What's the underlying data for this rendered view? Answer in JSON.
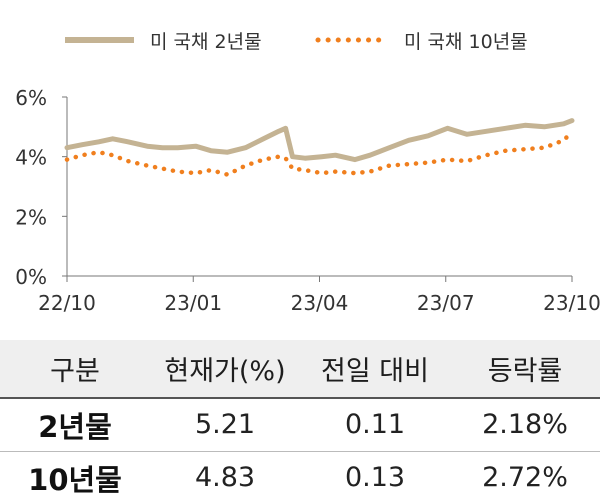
{
  "chart_data": {
    "type": "line",
    "x_ticks": [
      "22/10",
      "23/01",
      "23/04",
      "23/07",
      "23/10"
    ],
    "y_ticks": [
      "0%",
      "2%",
      "4%",
      "6%"
    ],
    "ylim": [
      0,
      6
    ],
    "xlim": [
      "2022-10-01",
      "2023-10-01"
    ],
    "grid": false,
    "legend_position": "top",
    "series": [
      {
        "name": "미 국채 2년물",
        "color": "#c4b393",
        "style": "solid",
        "x": [
          "2022-10-01",
          "2022-10-12",
          "2022-10-24",
          "2022-11-03",
          "2022-11-14",
          "2022-11-28",
          "2022-12-09",
          "2022-12-20",
          "2023-01-02",
          "2023-01-13",
          "2023-01-25",
          "2023-02-07",
          "2023-02-20",
          "2023-03-03",
          "2023-03-08",
          "2023-03-13",
          "2023-03-22",
          "2023-04-03",
          "2023-04-13",
          "2023-04-27",
          "2023-05-08",
          "2023-05-22",
          "2023-06-05",
          "2023-06-19",
          "2023-07-03",
          "2023-07-17",
          "2023-07-31",
          "2023-08-14",
          "2023-08-28",
          "2023-09-11",
          "2023-09-25",
          "2023-10-01"
        ],
        "values": [
          4.3,
          4.4,
          4.5,
          4.6,
          4.5,
          4.35,
          4.3,
          4.3,
          4.35,
          4.2,
          4.15,
          4.3,
          4.6,
          4.85,
          4.95,
          4.0,
          3.95,
          4.0,
          4.05,
          3.9,
          4.05,
          4.3,
          4.55,
          4.7,
          4.95,
          4.75,
          4.85,
          4.95,
          5.05,
          5.0,
          5.1,
          5.21
        ]
      },
      {
        "name": "미 국채 10년물",
        "color": "#f07f1e",
        "style": "dotted",
        "x": [
          "2022-10-01",
          "2022-10-12",
          "2022-10-24",
          "2022-11-03",
          "2022-11-14",
          "2022-11-28",
          "2022-12-09",
          "2022-12-20",
          "2023-01-02",
          "2023-01-13",
          "2023-01-25",
          "2023-02-07",
          "2023-02-20",
          "2023-03-03",
          "2023-03-08",
          "2023-03-13",
          "2023-03-22",
          "2023-04-03",
          "2023-04-13",
          "2023-04-27",
          "2023-05-08",
          "2023-05-22",
          "2023-06-05",
          "2023-06-19",
          "2023-07-03",
          "2023-07-17",
          "2023-07-31",
          "2023-08-14",
          "2023-08-28",
          "2023-09-11",
          "2023-09-25",
          "2023-10-01"
        ],
        "values": [
          3.9,
          4.05,
          4.15,
          4.05,
          3.85,
          3.7,
          3.6,
          3.5,
          3.45,
          3.55,
          3.4,
          3.7,
          3.9,
          4.0,
          3.95,
          3.6,
          3.55,
          3.45,
          3.5,
          3.45,
          3.5,
          3.7,
          3.75,
          3.8,
          3.9,
          3.85,
          4.05,
          4.2,
          4.25,
          4.3,
          4.55,
          4.83
        ]
      }
    ]
  },
  "table": {
    "headers": [
      "구분",
      "현재가(%)",
      "전일 대비",
      "등락률"
    ],
    "rows": [
      {
        "name": "2년물",
        "price": "5.21",
        "change": "0.11",
        "rate": "2.18%"
      },
      {
        "name": "10년물",
        "price": "4.83",
        "change": "0.13",
        "rate": "2.72%"
      }
    ]
  }
}
